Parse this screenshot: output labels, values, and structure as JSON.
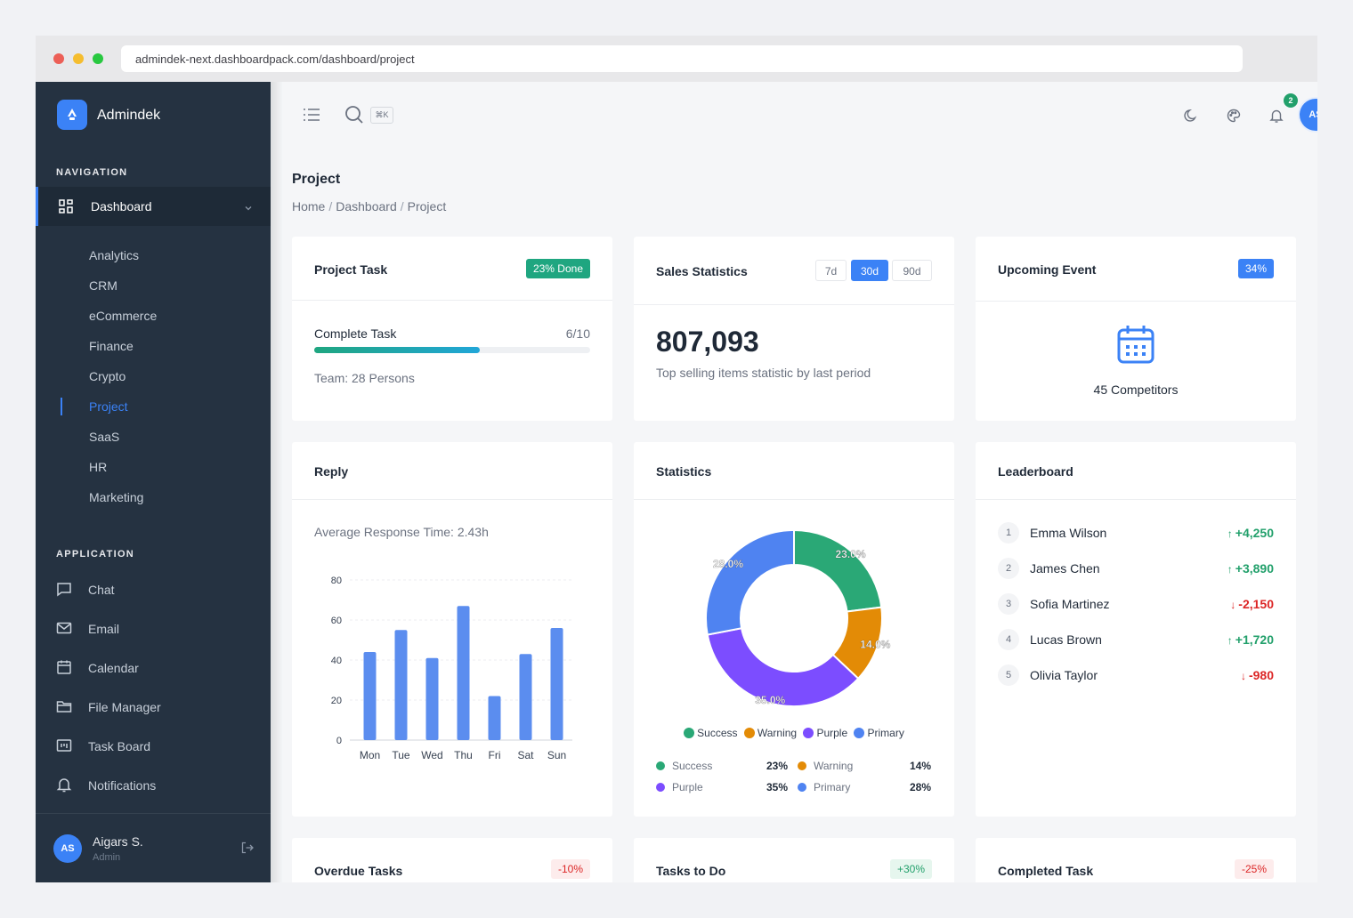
{
  "browser": {
    "url": "admindek-next.dashboardpack.com/dashboard/project",
    "dots": [
      "#ec5f57",
      "#f5bd2f",
      "#28c840"
    ]
  },
  "sidebar": {
    "brand": "Admindek",
    "nav_section": "NAVIGATION",
    "dashboard_label": "Dashboard",
    "dashboard_items": [
      {
        "label": "Analytics",
        "active": false
      },
      {
        "label": "CRM",
        "active": false
      },
      {
        "label": "eCommerce",
        "active": false
      },
      {
        "label": "Finance",
        "active": false
      },
      {
        "label": "Crypto",
        "active": false
      },
      {
        "label": "Project",
        "active": true
      },
      {
        "label": "SaaS",
        "active": false
      },
      {
        "label": "HR",
        "active": false
      },
      {
        "label": "Marketing",
        "active": false
      }
    ],
    "app_section": "APPLICATION",
    "app_items": [
      {
        "label": "Chat",
        "icon": "chat-icon"
      },
      {
        "label": "Email",
        "icon": "mail-icon"
      },
      {
        "label": "Calendar",
        "icon": "calendar-icon"
      },
      {
        "label": "File Manager",
        "icon": "folder-icon"
      },
      {
        "label": "Task Board",
        "icon": "kanban-icon"
      },
      {
        "label": "Notifications",
        "icon": "bell-icon"
      }
    ],
    "user": {
      "initials": "AS",
      "name": "Aigars S.",
      "role": "Admin"
    }
  },
  "topbar": {
    "shortcut": "⌘K",
    "notification_count": "2",
    "avatar_initials": "AS"
  },
  "page": {
    "title": "Project",
    "breadcrumb": [
      "Home",
      "Dashboard",
      "Project"
    ]
  },
  "colors": {
    "accent": "#3b82f6",
    "success": "#2aa876",
    "warning": "#e38b06",
    "purple": "#7c4dff",
    "primary": "#4f83f1",
    "sidebar_bg": "#253241"
  },
  "project_task": {
    "title": "Project Task",
    "badge": "23% Done",
    "label": "Complete Task",
    "count": "6/10",
    "progress": 0.6,
    "team": "Team: 28 Persons"
  },
  "sales": {
    "title": "Sales Statistics",
    "ranges": [
      {
        "label": "7d",
        "active": false
      },
      {
        "label": "30d",
        "active": true
      },
      {
        "label": "90d",
        "active": false
      }
    ],
    "value": "807,093",
    "caption": "Top selling items statistic by last period"
  },
  "event": {
    "title": "Upcoming Event",
    "badge": "34%",
    "label": "45 Competitors"
  },
  "reply": {
    "title": "Reply",
    "avg": "Average Response Time: 2.43h"
  },
  "statistics": {
    "title": "Statistics",
    "legend": [
      {
        "name": "Success",
        "color": "#2aa876"
      },
      {
        "name": "Warning",
        "color": "#e38b06"
      },
      {
        "name": "Purple",
        "color": "#7c4dff"
      },
      {
        "name": "Primary",
        "color": "#4f83f1"
      }
    ],
    "rows": [
      {
        "name": "Success",
        "value": "23%",
        "color": "#2aa876"
      },
      {
        "name": "Warning",
        "value": "14%",
        "color": "#e38b06"
      },
      {
        "name": "Purple",
        "value": "35%",
        "color": "#7c4dff"
      },
      {
        "name": "Primary",
        "value": "28%",
        "color": "#4f83f1"
      }
    ]
  },
  "leaderboard": {
    "title": "Leaderboard",
    "entries": [
      {
        "rank": "1",
        "name": "Emma Wilson",
        "delta": "+4,250",
        "dir": "up"
      },
      {
        "rank": "2",
        "name": "James Chen",
        "delta": "+3,890",
        "dir": "up"
      },
      {
        "rank": "3",
        "name": "Sofia Martinez",
        "delta": "-2,150",
        "dir": "down"
      },
      {
        "rank": "4",
        "name": "Lucas Brown",
        "delta": "+1,720",
        "dir": "up"
      },
      {
        "rank": "5",
        "name": "Olivia Taylor",
        "delta": "-980",
        "dir": "down"
      }
    ]
  },
  "bottom_cards": [
    {
      "title": "Overdue Tasks",
      "badge": "-10%",
      "tone": "down"
    },
    {
      "title": "Tasks to Do",
      "badge": "+30%",
      "tone": "up"
    },
    {
      "title": "Completed Task",
      "badge": "-25%",
      "tone": "down"
    }
  ],
  "chart_data": [
    {
      "type": "bar",
      "categories": [
        "Mon",
        "Tue",
        "Wed",
        "Thu",
        "Fri",
        "Sat",
        "Sun"
      ],
      "values": [
        44,
        55,
        41,
        67,
        22,
        43,
        56
      ],
      "ylim": [
        0,
        80
      ],
      "yticks": [
        0,
        20,
        40,
        60,
        80
      ],
      "color": "#5b8def",
      "grid": true
    },
    {
      "type": "pie",
      "donut": true,
      "categories": [
        "Success",
        "Warning",
        "Purple",
        "Primary"
      ],
      "values": [
        23.0,
        14.0,
        35.0,
        28.0
      ],
      "labels": [
        "23.0%",
        "14.0%",
        "35.0%",
        "28.0%"
      ],
      "colors": [
        "#2aa876",
        "#e38b06",
        "#7c4dff",
        "#4f83f1"
      ],
      "legend": "bottom"
    }
  ]
}
